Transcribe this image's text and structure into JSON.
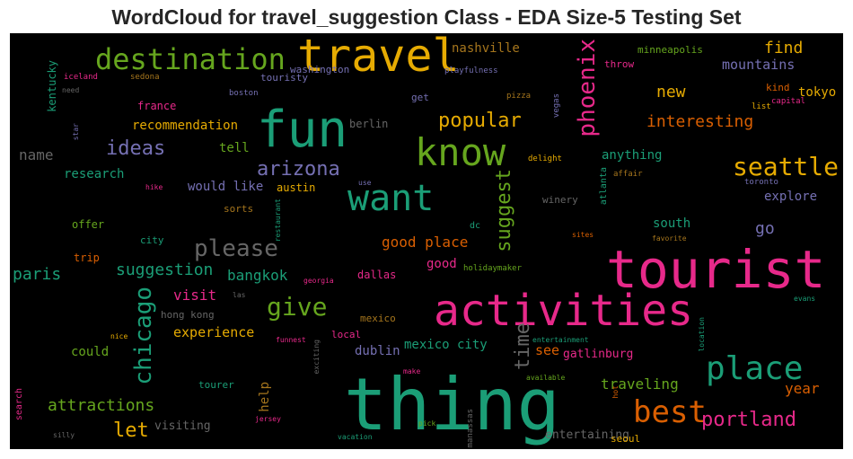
{
  "chart_data": {
    "type": "wordcloud",
    "title": "WordCloud for travel_suggestion Class - EDA Size-5 Testing Set",
    "background": "#000000",
    "palette": [
      "#1b9e77",
      "#d95f02",
      "#7570b3",
      "#e7298a",
      "#66a61e",
      "#e6ab02",
      "#a6761d",
      "#666666"
    ],
    "words": [
      {
        "text": "thing",
        "c": "#1b9e77"
      },
      {
        "text": "tourist",
        "c": "#e7298a"
      },
      {
        "text": "activities",
        "c": "#e7298a"
      },
      {
        "text": "fun",
        "c": "#1b9e77"
      },
      {
        "text": "travel",
        "c": "#e6ab02"
      },
      {
        "text": "know",
        "c": "#66a61e"
      },
      {
        "text": "want",
        "c": "#1b9e77"
      },
      {
        "text": "destination",
        "c": "#66a61e"
      },
      {
        "text": "place",
        "c": "#1b9e77"
      },
      {
        "text": "best",
        "c": "#d95f02"
      },
      {
        "text": "phoenix",
        "c": "#e7298a"
      },
      {
        "text": "seattle",
        "c": "#e6ab02"
      },
      {
        "text": "give",
        "c": "#66a61e"
      },
      {
        "text": "chicago",
        "c": "#1b9e77"
      },
      {
        "text": "please",
        "c": "#666666"
      },
      {
        "text": "portland",
        "c": "#e7298a"
      },
      {
        "text": "arizona",
        "c": "#7570b3"
      },
      {
        "text": "popular",
        "c": "#e6ab02"
      },
      {
        "text": "suggest",
        "c": "#66a61e"
      },
      {
        "text": "ideas",
        "c": "#7570b3"
      },
      {
        "text": "let",
        "c": "#e6ab02"
      },
      {
        "text": "time",
        "c": "#666666"
      },
      {
        "text": "suggestion",
        "c": "#1b9e77"
      },
      {
        "text": "interesting",
        "c": "#d95f02"
      },
      {
        "text": "attractions",
        "c": "#66a61e"
      },
      {
        "text": "traveling",
        "c": "#66a61e"
      },
      {
        "text": "good place",
        "c": "#d95f02"
      },
      {
        "text": "new",
        "c": "#e6ab02"
      },
      {
        "text": "find",
        "c": "#e6ab02"
      },
      {
        "text": "paris",
        "c": "#1b9e77"
      },
      {
        "text": "bangkok",
        "c": "#1b9e77"
      },
      {
        "text": "year",
        "c": "#d95f02"
      },
      {
        "text": "go",
        "c": "#7570b3"
      },
      {
        "text": "visit",
        "c": "#e7298a"
      },
      {
        "text": "recommendation",
        "c": "#e6ab02"
      },
      {
        "text": "experience",
        "c": "#e6ab02"
      },
      {
        "text": "mountains",
        "c": "#7570b3"
      },
      {
        "text": "tokyo",
        "c": "#e6ab02"
      },
      {
        "text": "anything",
        "c": "#1b9e77"
      },
      {
        "text": "explore",
        "c": "#7570b3"
      },
      {
        "text": "south",
        "c": "#1b9e77"
      },
      {
        "text": "mexico city",
        "c": "#1b9e77"
      },
      {
        "text": "see",
        "c": "#d95f02"
      },
      {
        "text": "help",
        "c": "#a6761d"
      },
      {
        "text": "research",
        "c": "#1b9e77"
      },
      {
        "text": "nashville",
        "c": "#a6761d"
      },
      {
        "text": "name",
        "c": "#666666"
      },
      {
        "text": "tell",
        "c": "#66a61e"
      },
      {
        "text": "would like",
        "c": "#7570b3"
      },
      {
        "text": "dublin",
        "c": "#7570b3"
      },
      {
        "text": "good",
        "c": "#e7298a"
      },
      {
        "text": "could",
        "c": "#66a61e"
      },
      {
        "text": "visiting",
        "c": "#666666"
      },
      {
        "text": "entertaining",
        "c": "#666666"
      },
      {
        "text": "gatlinburg",
        "c": "#e7298a"
      },
      {
        "text": "austin",
        "c": "#e6ab02"
      },
      {
        "text": "dallas",
        "c": "#e7298a"
      },
      {
        "text": "berlin",
        "c": "#666666"
      },
      {
        "text": "kentucky",
        "c": "#1b9e77"
      },
      {
        "text": "minneapolis",
        "c": "#66a61e"
      },
      {
        "text": "washington",
        "c": "#7570b3"
      },
      {
        "text": "touristy",
        "c": "#7570b3"
      },
      {
        "text": "throw",
        "c": "#e7298a"
      },
      {
        "text": "france",
        "c": "#e7298a"
      },
      {
        "text": "get",
        "c": "#7570b3"
      },
      {
        "text": "offer",
        "c": "#66a61e"
      },
      {
        "text": "trip",
        "c": "#d95f02"
      },
      {
        "text": "city",
        "c": "#1b9e77"
      },
      {
        "text": "tourer",
        "c": "#1b9e77"
      },
      {
        "text": "sorts",
        "c": "#a6761d"
      },
      {
        "text": "hong kong",
        "c": "#666666"
      },
      {
        "text": "winery",
        "c": "#666666"
      },
      {
        "text": "seoul",
        "c": "#e6ab02"
      },
      {
        "text": "local",
        "c": "#e7298a"
      },
      {
        "text": "mexico",
        "c": "#a6761d"
      },
      {
        "text": "kind",
        "c": "#d95f02"
      },
      {
        "text": "dc",
        "c": "#1b9e77"
      },
      {
        "text": "atlanta",
        "c": "#1b9e77"
      },
      {
        "text": "search",
        "c": "#e7298a"
      },
      {
        "text": "playfulness",
        "c": "#7570b3"
      },
      {
        "text": "iceland",
        "c": "#e7298a"
      },
      {
        "text": "sedona",
        "c": "#a6761d"
      },
      {
        "text": "boston",
        "c": "#7570b3"
      },
      {
        "text": "pizza",
        "c": "#a6761d"
      },
      {
        "text": "vegas",
        "c": "#7570b3"
      },
      {
        "text": "capital",
        "c": "#e7298a"
      },
      {
        "text": "list",
        "c": "#e6ab02"
      },
      {
        "text": "delight",
        "c": "#e6ab02"
      },
      {
        "text": "affair",
        "c": "#a6761d"
      },
      {
        "text": "toronto",
        "c": "#7570b3"
      },
      {
        "text": "use",
        "c": "#7570b3"
      },
      {
        "text": "hike",
        "c": "#e7298a"
      },
      {
        "text": "restaurant",
        "c": "#1b9e77"
      },
      {
        "text": "sites",
        "c": "#d95f02"
      },
      {
        "text": "favorite",
        "c": "#a6761d"
      },
      {
        "text": "holidaymaker",
        "c": "#66a61e"
      },
      {
        "text": "georgia",
        "c": "#e7298a"
      },
      {
        "text": "las",
        "c": "#666666"
      },
      {
        "text": "nice",
        "c": "#e6ab02"
      },
      {
        "text": "funnest",
        "c": "#e7298a"
      },
      {
        "text": "entertainment",
        "c": "#1b9e77"
      },
      {
        "text": "location",
        "c": "#1b9e77"
      },
      {
        "text": "evans",
        "c": "#1b9e77"
      },
      {
        "text": "exciting",
        "c": "#666666"
      },
      {
        "text": "make",
        "c": "#e7298a"
      },
      {
        "text": "available",
        "c": "#66a61e"
      },
      {
        "text": "hot",
        "c": "#d95f02"
      },
      {
        "text": "jersey",
        "c": "#e7298a"
      },
      {
        "text": "pick",
        "c": "#66a61e"
      },
      {
        "text": "manassas",
        "c": "#666666"
      },
      {
        "text": "silly",
        "c": "#666666"
      },
      {
        "text": "vacation",
        "c": "#1b9e77"
      },
      {
        "text": "need",
        "c": "#666666"
      },
      {
        "text": "star",
        "c": "#7570b3"
      }
    ]
  }
}
